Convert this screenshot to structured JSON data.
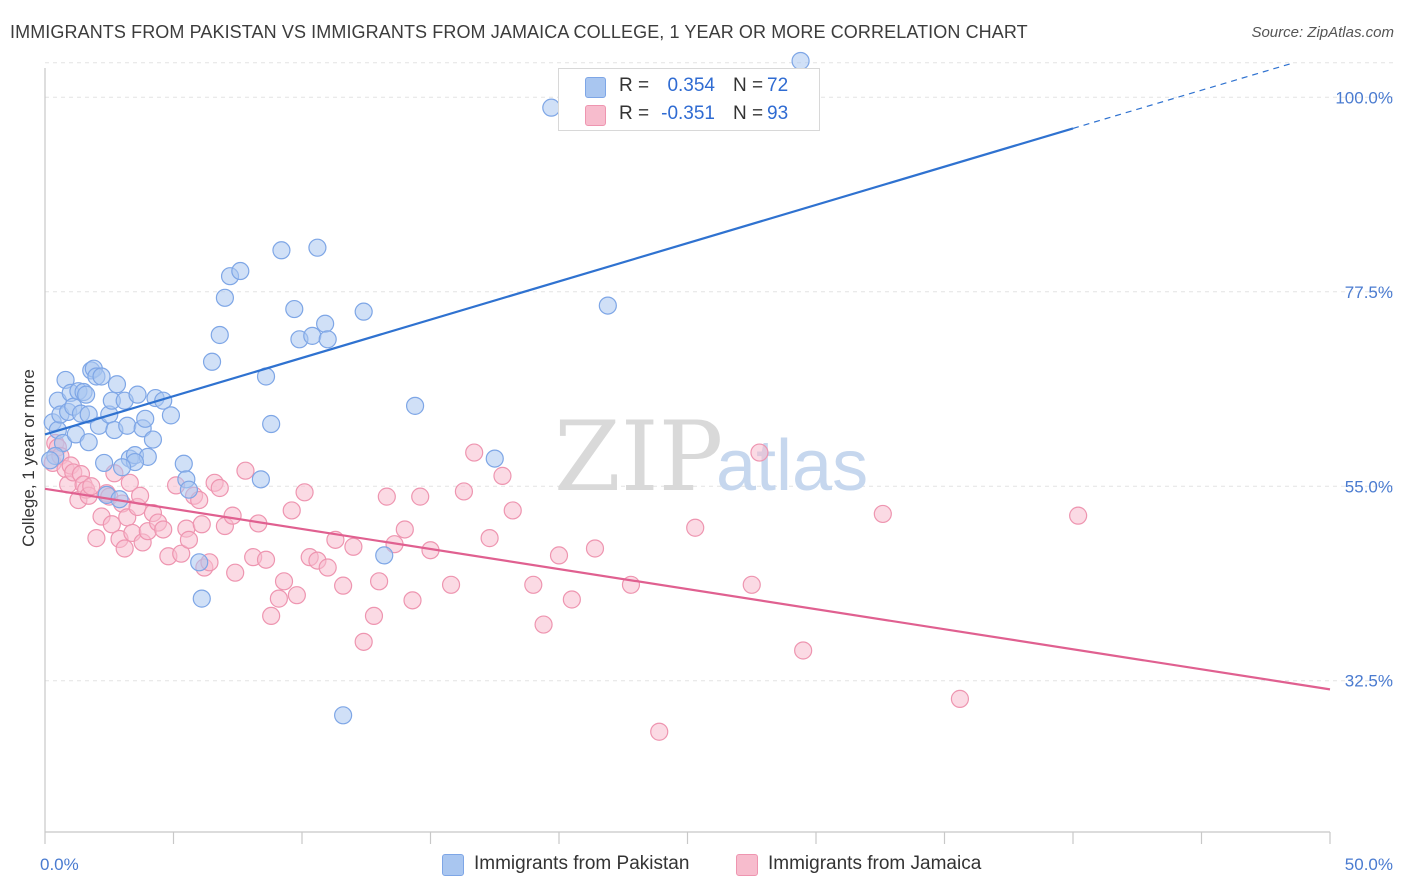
{
  "title": "IMMIGRANTS FROM PAKISTAN VS IMMIGRANTS FROM JAMAICA COLLEGE, 1 YEAR OR MORE CORRELATION CHART",
  "source": "Source: ZipAtlas.com",
  "watermark": {
    "zip": "ZIP",
    "atlas": "atlas"
  },
  "stats": [
    {
      "r_label": "R =",
      "r_value": "0.354",
      "n_label": "N =",
      "n_value": "72",
      "color": "#a9c6f0",
      "border": "#7ea6e6"
    },
    {
      "r_label": "R =",
      "r_value": "-0.351",
      "n_label": "N =",
      "n_value": "93",
      "color": "#f7bccd",
      "border": "#ee95b0"
    }
  ],
  "legend": [
    {
      "label": "Immigrants from Pakistan",
      "color": "#a9c6f0",
      "border": "#7ea6e6"
    },
    {
      "label": "Immigrants from Jamaica",
      "color": "#f7bccd",
      "border": "#ee95b0"
    }
  ],
  "chart_data": {
    "type": "scatter",
    "title": "IMMIGRANTS FROM PAKISTAN VS IMMIGRANTS FROM JAMAICA COLLEGE, 1 YEAR OR MORE CORRELATION CHART",
    "xlabel": "",
    "ylabel": "College, 1 year or more",
    "xlim": [
      0,
      50
    ],
    "ylim": [
      15,
      102
    ],
    "x_tick_labels": [
      "0.0%",
      "50.0%"
    ],
    "y_ticks": [
      32.5,
      55.0,
      77.5,
      100.0
    ],
    "y_tick_labels": [
      "32.5%",
      "55.0%",
      "77.5%",
      "100.0%"
    ],
    "grid": true,
    "legend_position": "bottom-center",
    "series": [
      {
        "name": "Immigrants from Pakistan",
        "color": "#7ea6e6",
        "fill": "#a9c6f0",
        "line_color": "#2f72d0",
        "trend": {
          "x1": 0,
          "y1": 61.0,
          "x2": 40.0,
          "y2": 96.4,
          "dashed_x2": 48.6,
          "dashed_y2": 104.0
        },
        "points": [
          [
            0.3,
            62.4
          ],
          [
            0.5,
            61.5
          ],
          [
            0.7,
            60.0
          ],
          [
            0.4,
            58.5
          ],
          [
            0.5,
            64.9
          ],
          [
            0.6,
            63.3
          ],
          [
            0.8,
            67.3
          ],
          [
            0.9,
            63.6
          ],
          [
            1.0,
            65.8
          ],
          [
            1.1,
            64.2
          ],
          [
            1.3,
            66.0
          ],
          [
            1.4,
            63.4
          ],
          [
            1.5,
            65.9
          ],
          [
            1.6,
            65.6
          ],
          [
            1.7,
            63.3
          ],
          [
            1.8,
            68.4
          ],
          [
            1.9,
            68.6
          ],
          [
            2.0,
            67.7
          ],
          [
            2.1,
            62.0
          ],
          [
            2.2,
            67.7
          ],
          [
            2.3,
            57.7
          ],
          [
            2.5,
            63.3
          ],
          [
            2.6,
            64.9
          ],
          [
            2.7,
            61.5
          ],
          [
            2.8,
            66.8
          ],
          [
            3.1,
            64.9
          ],
          [
            3.2,
            62.0
          ],
          [
            3.3,
            58.2
          ],
          [
            3.5,
            58.6
          ],
          [
            3.6,
            65.6
          ],
          [
            3.8,
            61.7
          ],
          [
            3.9,
            62.8
          ],
          [
            4.0,
            58.4
          ],
          [
            4.2,
            60.4
          ],
          [
            4.3,
            65.2
          ],
          [
            4.6,
            64.9
          ],
          [
            4.9,
            63.2
          ],
          [
            5.4,
            57.6
          ],
          [
            5.5,
            55.8
          ],
          [
            5.6,
            54.6
          ],
          [
            6.0,
            46.2
          ],
          [
            6.1,
            42.0
          ],
          [
            6.5,
            69.4
          ],
          [
            6.8,
            72.5
          ],
          [
            7.0,
            76.8
          ],
          [
            7.2,
            79.3
          ],
          [
            7.6,
            79.9
          ],
          [
            8.4,
            55.8
          ],
          [
            8.6,
            67.7
          ],
          [
            8.8,
            62.2
          ],
          [
            9.2,
            82.3
          ],
          [
            9.7,
            75.5
          ],
          [
            9.9,
            72.0
          ],
          [
            10.4,
            72.4
          ],
          [
            10.6,
            82.6
          ],
          [
            10.9,
            73.8
          ],
          [
            11.0,
            72.0
          ],
          [
            11.6,
            28.5
          ],
          [
            12.4,
            75.2
          ],
          [
            13.2,
            47.0
          ],
          [
            14.4,
            64.3
          ],
          [
            17.5,
            58.2
          ],
          [
            19.7,
            98.8
          ],
          [
            21.9,
            75.9
          ],
          [
            29.4,
            104.2
          ],
          [
            3.5,
            57.8
          ],
          [
            3.0,
            57.2
          ],
          [
            2.4,
            54.0
          ],
          [
            2.9,
            53.5
          ],
          [
            0.2,
            58.0
          ],
          [
            1.2,
            61.0
          ],
          [
            1.7,
            60.1
          ]
        ]
      },
      {
        "name": "Immigrants from Jamaica",
        "color": "#ee95b0",
        "fill": "#f7bccd",
        "line_color": "#e06090",
        "trend": {
          "x1": 0,
          "y1": 54.7,
          "x2": 50.0,
          "y2": 31.5
        },
        "points": [
          [
            0.3,
            57.7
          ],
          [
            0.4,
            60.0
          ],
          [
            0.5,
            59.5
          ],
          [
            0.6,
            58.5
          ],
          [
            0.8,
            57.0
          ],
          [
            0.9,
            55.2
          ],
          [
            1.0,
            57.4
          ],
          [
            1.1,
            56.6
          ],
          [
            1.3,
            53.4
          ],
          [
            1.4,
            56.4
          ],
          [
            1.5,
            55.2
          ],
          [
            1.6,
            54.6
          ],
          [
            1.7,
            53.9
          ],
          [
            1.8,
            55.0
          ],
          [
            2.0,
            49.0
          ],
          [
            2.2,
            51.5
          ],
          [
            2.4,
            54.2
          ],
          [
            2.5,
            53.8
          ],
          [
            2.6,
            50.6
          ],
          [
            2.7,
            56.5
          ],
          [
            2.9,
            48.9
          ],
          [
            3.0,
            53.0
          ],
          [
            3.1,
            47.8
          ],
          [
            3.2,
            51.4
          ],
          [
            3.3,
            55.4
          ],
          [
            3.4,
            49.6
          ],
          [
            3.6,
            52.6
          ],
          [
            3.7,
            53.9
          ],
          [
            3.8,
            48.5
          ],
          [
            4.0,
            49.8
          ],
          [
            4.2,
            51.9
          ],
          [
            4.4,
            50.8
          ],
          [
            4.6,
            50.0
          ],
          [
            4.8,
            46.9
          ],
          [
            5.1,
            55.1
          ],
          [
            5.3,
            47.2
          ],
          [
            5.5,
            50.1
          ],
          [
            5.6,
            48.8
          ],
          [
            5.8,
            53.9
          ],
          [
            6.0,
            53.4
          ],
          [
            6.1,
            50.6
          ],
          [
            6.2,
            45.6
          ],
          [
            6.4,
            46.2
          ],
          [
            6.6,
            55.4
          ],
          [
            6.8,
            54.8
          ],
          [
            7.0,
            50.4
          ],
          [
            7.3,
            51.6
          ],
          [
            7.4,
            45.0
          ],
          [
            7.8,
            56.8
          ],
          [
            8.1,
            46.8
          ],
          [
            8.3,
            50.7
          ],
          [
            8.6,
            46.5
          ],
          [
            8.8,
            40.0
          ],
          [
            9.1,
            42.0
          ],
          [
            9.3,
            44.0
          ],
          [
            9.6,
            52.2
          ],
          [
            9.8,
            42.4
          ],
          [
            10.1,
            54.3
          ],
          [
            10.3,
            46.8
          ],
          [
            10.6,
            46.4
          ],
          [
            11.0,
            45.6
          ],
          [
            11.3,
            48.8
          ],
          [
            11.6,
            43.5
          ],
          [
            12.0,
            48.0
          ],
          [
            12.4,
            37.0
          ],
          [
            12.8,
            40.0
          ],
          [
            13.0,
            44.0
          ],
          [
            13.3,
            53.8
          ],
          [
            13.6,
            48.3
          ],
          [
            14.0,
            50.0
          ],
          [
            14.3,
            41.8
          ],
          [
            14.6,
            53.8
          ],
          [
            15.0,
            47.6
          ],
          [
            15.8,
            43.6
          ],
          [
            16.3,
            54.4
          ],
          [
            16.7,
            58.9
          ],
          [
            17.3,
            49.0
          ],
          [
            17.8,
            56.2
          ],
          [
            18.2,
            52.2
          ],
          [
            19.0,
            43.6
          ],
          [
            19.4,
            39.0
          ],
          [
            20.0,
            47.0
          ],
          [
            20.5,
            41.9
          ],
          [
            21.4,
            47.8
          ],
          [
            22.8,
            43.6
          ],
          [
            23.9,
            26.6
          ],
          [
            25.3,
            50.2
          ],
          [
            27.5,
            43.6
          ],
          [
            27.8,
            58.9
          ],
          [
            29.5,
            36.0
          ],
          [
            32.6,
            51.8
          ],
          [
            35.6,
            30.4
          ],
          [
            40.2,
            51.6
          ]
        ]
      }
    ]
  }
}
